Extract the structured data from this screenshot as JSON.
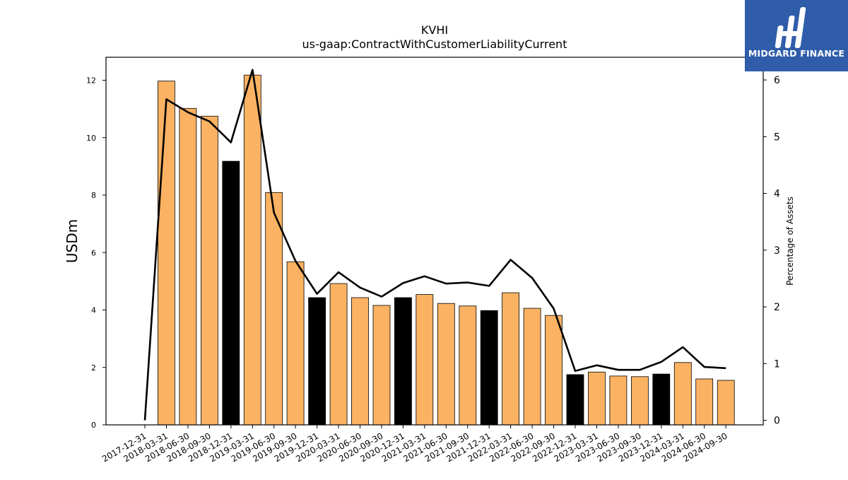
{
  "chart_data": {
    "type": "bar",
    "title": "KVHI",
    "subtitle": "us-gaap:ContractWithCustomerLiabilityCurrent",
    "ylabel": "USDm",
    "y2label": "Percentage of Assets",
    "ylim": [
      0,
      12.8
    ],
    "y2lim": [
      -0.08,
      6.4
    ],
    "yticks": [
      0,
      2,
      4,
      6,
      8,
      10,
      12
    ],
    "y2ticks": [
      0,
      1,
      2,
      3,
      4,
      5,
      6
    ],
    "grid": false,
    "categories": [
      "2017-12-31",
      "2018-03-31",
      "2018-06-30",
      "2018-09-30",
      "2018-12-31",
      "2019-03-31",
      "2019-06-30",
      "2019-09-30",
      "2019-12-31",
      "2020-03-31",
      "2020-06-30",
      "2020-09-30",
      "2020-12-31",
      "2021-03-31",
      "2021-06-30",
      "2021-09-30",
      "2021-12-31",
      "2022-03-31",
      "2022-06-30",
      "2022-09-30",
      "2022-12-31",
      "2023-03-31",
      "2023-06-30",
      "2023-09-30",
      "2023-12-31",
      "2024-03-31",
      "2024-06-30",
      "2024-09-30"
    ],
    "series": [
      {
        "type": "bar",
        "axis": "left",
        "values": [
          null,
          11.97,
          11.02,
          10.75,
          9.18,
          12.18,
          8.09,
          5.68,
          4.43,
          4.92,
          4.43,
          4.16,
          4.43,
          4.54,
          4.23,
          4.14,
          3.98,
          4.6,
          4.06,
          3.81,
          1.75,
          1.84,
          1.7,
          1.68,
          1.77,
          2.17,
          1.6,
          1.55
        ],
        "colors": [
          "#fbb262",
          "#fbb262",
          "#fbb262",
          "#fbb262",
          "#000000",
          "#fbb262",
          "#fbb262",
          "#fbb262",
          "#000000",
          "#fbb262",
          "#fbb262",
          "#fbb262",
          "#000000",
          "#fbb262",
          "#fbb262",
          "#fbb262",
          "#000000",
          "#fbb262",
          "#fbb262",
          "#fbb262",
          "#000000",
          "#fbb262",
          "#fbb262",
          "#fbb262",
          "#000000",
          "#fbb262",
          "#fbb262",
          "#fbb262"
        ]
      },
      {
        "type": "line",
        "axis": "right",
        "color": "#000000",
        "values": [
          0.0,
          5.66,
          5.43,
          5.27,
          4.9,
          6.18,
          3.66,
          2.81,
          2.23,
          2.61,
          2.34,
          2.18,
          2.42,
          2.54,
          2.41,
          2.43,
          2.37,
          2.83,
          2.51,
          1.97,
          0.87,
          0.97,
          0.89,
          0.89,
          1.03,
          1.29,
          0.94,
          0.92
        ]
      }
    ]
  },
  "logo": {
    "text": "MIDGARD FINANCE",
    "bg_color": "#2f5daa"
  }
}
